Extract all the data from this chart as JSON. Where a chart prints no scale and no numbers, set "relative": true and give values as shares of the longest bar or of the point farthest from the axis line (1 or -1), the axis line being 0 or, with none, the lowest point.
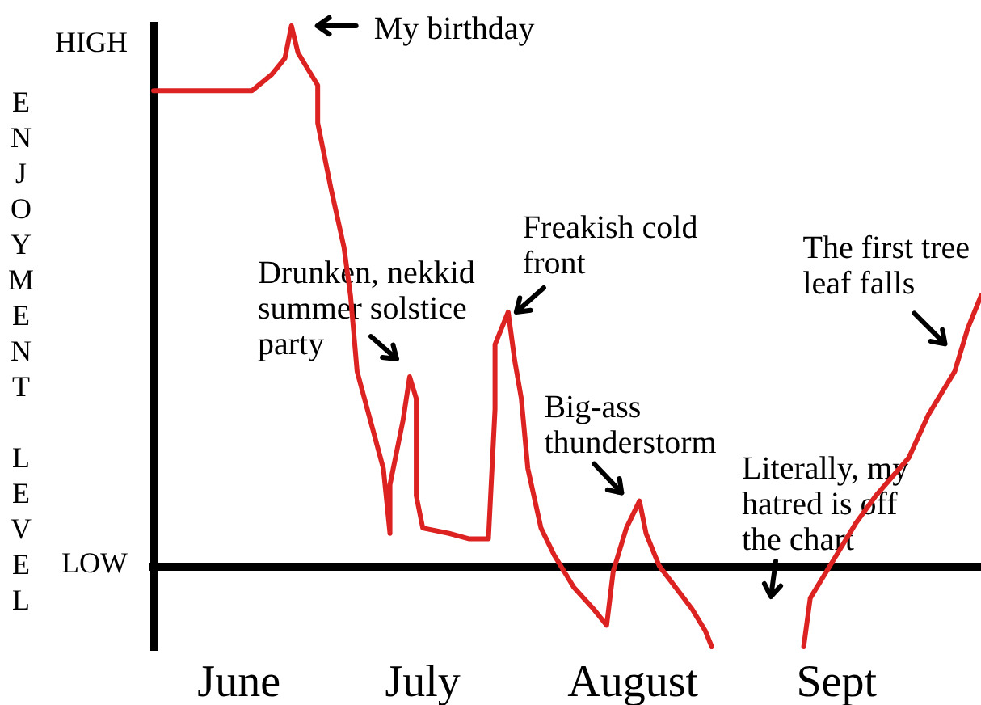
{
  "chart_data": {
    "type": "line",
    "relative": true,
    "ylabel": "ENJOYMENT LEVEL",
    "color": "#dd2222",
    "line_style": "solid",
    "x": [
      "--06-03",
      "--06-13",
      "--06-18",
      "--06-21",
      "--06-23",
      "--06-24",
      "--06-25",
      "--06-26",
      "--06-28",
      "--06-28",
      "--06-30",
      "--07-02",
      "--07-03",
      "--07-04",
      "--07-06",
      "--07-08",
      "--07-09",
      "--07-09",
      "--07-11",
      "--07-12",
      "--07-13",
      "--07-13",
      "--07-14",
      "--07-18",
      "--07-21",
      "--07-24",
      "--07-25",
      "--07-25",
      "--07-27",
      "--07-28",
      "--07-29",
      "--07-30",
      "--08-01",
      "--08-03",
      "--08-06",
      "--08-09",
      "--08-11",
      "--08-12",
      "--08-14",
      "--08-16",
      "--08-17",
      "--08-19",
      "--08-24",
      "--08-26",
      "--08-27",
      "--09-03",
      "--09-10",
      "--09-11",
      "--09-15",
      "--09-18",
      "--09-21",
      "--09-26",
      "--09-29",
      "--10-03",
      "--10-05",
      "--10-07"
    ],
    "values": [
      0.88,
      0.88,
      0.88,
      0.91,
      0.94,
      1,
      0.95,
      0.93,
      0.89,
      0.82,
      0.7,
      0.59,
      0.5,
      0.36,
      0.27,
      0.18,
      0.06,
      0.15,
      0.27,
      0.35,
      0.31,
      0.13,
      0.07,
      0.06,
      0.05,
      0.05,
      0.29,
      0.41,
      0.47,
      0.38,
      0.31,
      0.18,
      0.07,
      0.02,
      -0.04,
      -0.08,
      -0.11,
      -0.01,
      0.07,
      0.12,
      0.06,
      0.0,
      -0.08,
      -0.12,
      -0.15,
      null,
      -0.15,
      -0.06,
      0.02,
      0.08,
      0.13,
      0.2,
      0.28,
      0.36,
      0.44,
      0.5
    ],
    "xlim": [
      "--06-03",
      "--10-07"
    ],
    "xticks": [
      {
        "value": "--06-16",
        "label": "June"
      },
      {
        "value": "--07-14",
        "label": "July"
      },
      {
        "value": "--08-15",
        "label": "August"
      },
      {
        "value": "--09-15",
        "label": "Sept"
      }
    ],
    "annotations": [
      "HIGH",
      {
        "text": "My birthday",
        "x": "--06-24",
        "y": 1
      },
      {
        "text": "Drunken, nekkid\nsummer solstice\nparty",
        "x": "--07-12",
        "y": 0.35
      },
      {
        "text": "Freakish cold\nfront",
        "x": "--07-27",
        "y": 0.47
      },
      {
        "text": "Big-ass\nthunderstorm",
        "x": "--08-16",
        "y": 0.12
      },
      "Literally, my\nhatred is off\nthe chart",
      {
        "text": "The first tree\nleaf falls",
        "x": "--10-03",
        "y": 0.36
      },
      "LOW"
    ]
  }
}
